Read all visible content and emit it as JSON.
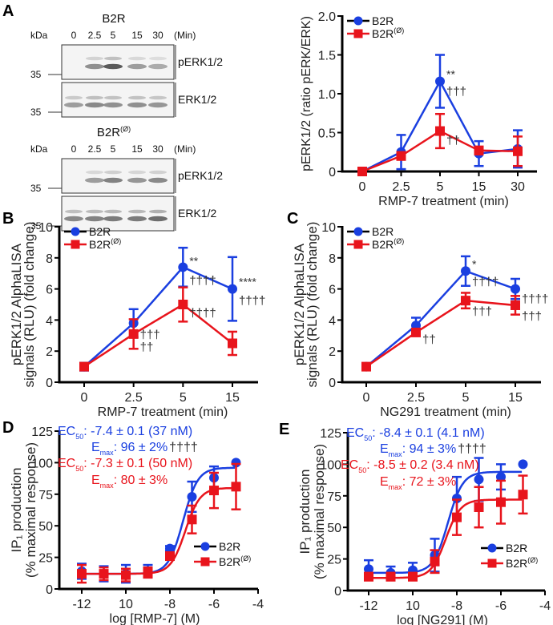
{
  "colors": {
    "b2r": "#1a3fe0",
    "b2r_mut": "#e8141c",
    "axis": "#000000",
    "annot": "#333333"
  },
  "panel_letters": [
    "A",
    "B",
    "C",
    "D",
    "E"
  ],
  "blot": {
    "groups": [
      {
        "title": "B2R",
        "title_sup": "",
        "kda_label": "kDa",
        "lanes": [
          "0",
          "2.5",
          "5",
          "15",
          "30"
        ],
        "unit": "(Min)",
        "rows": [
          {
            "label": "pERK1/2",
            "marker": "35",
            "bands": [
              0.0,
              0.45,
              0.85,
              0.35,
              0.25
            ]
          },
          {
            "label": "ERK1/2",
            "marker": "35",
            "bands": [
              0.35,
              0.5,
              0.45,
              0.45,
              0.4
            ]
          }
        ]
      },
      {
        "title": "B2R",
        "title_sup": "(Ø)",
        "kda_label": "kDa",
        "lanes": [
          "0",
          "2.5",
          "5",
          "15",
          "30"
        ],
        "unit": "(Min)",
        "rows": [
          {
            "label": "pERK1/2",
            "marker": "35",
            "bands": [
              0.0,
              0.35,
              0.55,
              0.4,
              0.5
            ]
          },
          {
            "label": "ERK1/2",
            "marker": "35",
            "bands": [
              0.5,
              0.55,
              0.6,
              0.6,
              0.7
            ]
          }
        ]
      }
    ]
  },
  "chart_data": [
    {
      "id": "A",
      "type": "line",
      "title": "",
      "xlabel": "RMP-7 treatment (min)",
      "ylabel": "pERK1/2 (ratio pERK/ERK)",
      "categories": [
        "0",
        "2.5",
        "5",
        "15",
        "30"
      ],
      "yticks": [
        "0",
        "0.5",
        "1.0",
        "1.5",
        "2.0"
      ],
      "ylim": [
        0,
        2.0
      ],
      "legend": "top-left",
      "series": [
        {
          "name": "B2R",
          "sup": "",
          "marker": "circle",
          "values": [
            0,
            0.25,
            1.16,
            0.23,
            0.29
          ],
          "err": [
            0.02,
            0.22,
            0.34,
            0.16,
            0.24
          ]
        },
        {
          "name": "B2R",
          "sup": "(Ø)",
          "marker": "square",
          "values": [
            0,
            0.2,
            0.52,
            0.27,
            0.26
          ],
          "err": [
            0.02,
            0.05,
            0.22,
            0.05,
            0.19
          ]
        }
      ],
      "annotations": [
        {
          "text": "**",
          "cat": 2,
          "y": 1.2,
          "color": "annot"
        },
        {
          "text": "†††",
          "cat": 2,
          "y": 0.98,
          "color": "annot"
        },
        {
          "text": "††",
          "cat": 2,
          "y": 0.35,
          "color": "annot"
        }
      ]
    },
    {
      "id": "B",
      "type": "line",
      "xlabel": "RMP-7 treatment (min)",
      "ylabel": [
        "pERK1/2 AlphaLISA",
        "signals (RLU) (fold change)"
      ],
      "categories": [
        "0",
        "2.5",
        "5",
        "15"
      ],
      "yticks": [
        "0",
        "2",
        "4",
        "6",
        "8",
        "10"
      ],
      "ylim": [
        0,
        10
      ],
      "legend": "top-left",
      "series": [
        {
          "name": "B2R",
          "sup": "",
          "marker": "circle",
          "values": [
            1.0,
            3.8,
            7.4,
            6.0
          ],
          "err": [
            0.25,
            0.9,
            1.25,
            2.05
          ]
        },
        {
          "name": "B2R",
          "sup": "(Ø)",
          "marker": "square",
          "values": [
            1.0,
            3.1,
            5.0,
            2.5
          ],
          "err": [
            0.2,
            0.95,
            1.1,
            0.75
          ]
        }
      ],
      "annotations": [
        {
          "text": "**",
          "cat": 2,
          "y": 7.55,
          "color": "annot"
        },
        {
          "text": "††††",
          "cat": 2,
          "y": 6.3,
          "color": "annot"
        },
        {
          "text": "††††",
          "cat": 2,
          "y": 4.2,
          "color": "annot"
        },
        {
          "text": "****",
          "cat": 3,
          "y": 6.2,
          "color": "annot"
        },
        {
          "text": "††††",
          "cat": 3,
          "y": 5.0,
          "color": "annot"
        },
        {
          "text": "†††",
          "cat": 1,
          "y": 2.8,
          "color": "annot"
        },
        {
          "text": "††",
          "cat": 1,
          "y": 2.0,
          "color": "annot"
        }
      ]
    },
    {
      "id": "C",
      "type": "line",
      "xlabel": "NG291 treatment (min)",
      "ylabel": [
        "pERK1/2 AlphaLISA",
        "signals (RLU) (fold change)"
      ],
      "categories": [
        "0",
        "2.5",
        "5",
        "15"
      ],
      "yticks": [
        "0",
        "2",
        "4",
        "6",
        "8",
        "10"
      ],
      "ylim": [
        0,
        10
      ],
      "legend": "top-left",
      "series": [
        {
          "name": "B2R",
          "sup": "",
          "marker": "circle",
          "values": [
            1.0,
            3.65,
            7.15,
            6.0
          ],
          "err": [
            0.1,
            0.5,
            0.95,
            0.65
          ]
        },
        {
          "name": "B2R",
          "sup": "(Ø)",
          "marker": "square",
          "values": [
            1.0,
            3.2,
            5.25,
            4.95
          ],
          "err": [
            0.1,
            0.2,
            0.5,
            0.6
          ]
        }
      ],
      "annotations": [
        {
          "text": "*",
          "cat": 2,
          "y": 7.35,
          "color": "annot"
        },
        {
          "text": "††††",
          "cat": 2,
          "y": 6.2,
          "color": "annot"
        },
        {
          "text": "†††",
          "cat": 2,
          "y": 4.3,
          "color": "annot"
        },
        {
          "text": "††††",
          "cat": 3,
          "y": 5.1,
          "color": "annot"
        },
        {
          "text": "†††",
          "cat": 3,
          "y": 4.0,
          "color": "annot"
        },
        {
          "text": "††",
          "cat": 1,
          "y": 2.5,
          "color": "annot"
        }
      ]
    },
    {
      "id": "D",
      "type": "scatter",
      "xlabel": "log [RMP-7] (M)",
      "ylabel": [
        "IP₁ production",
        "(% maximal response)"
      ],
      "xticks": [
        "-12",
        "10",
        "-8",
        "-6",
        "-4"
      ],
      "xlim": [
        -12.5,
        -4
      ],
      "yticks": [
        "0",
        "25",
        "50",
        "75",
        "100",
        "125"
      ],
      "ylim": [
        0,
        125
      ],
      "legend": "bottom-right",
      "series": [
        {
          "name": "B2R",
          "sup": "",
          "marker": "circle",
          "x": [
            -12,
            -11,
            -10,
            -9,
            -8,
            -7,
            -6,
            -5
          ],
          "values": [
            14,
            12,
            12,
            14,
            32,
            73,
            88,
            100
          ],
          "err": [
            6,
            6,
            7,
            5,
            2,
            12,
            9,
            0
          ],
          "fit": {
            "bottom": 12,
            "top": 96,
            "logEC50": -7.4,
            "hill": 1.3
          }
        },
        {
          "name": "B2R",
          "sup": "(Ø)",
          "marker": "square",
          "x": [
            -12,
            -11,
            -10,
            -9,
            -8,
            -7,
            -6,
            -5
          ],
          "values": [
            12,
            12,
            11,
            13,
            26,
            55,
            78,
            81
          ],
          "err": [
            7,
            5,
            5,
            4,
            2,
            11,
            14,
            18
          ],
          "fit": {
            "bottom": 12,
            "top": 80,
            "logEC50": -7.3,
            "hill": 1.3
          }
        }
      ],
      "stats": [
        {
          "label": "EC",
          "sub": "50",
          "text": ": -7.4 ± 0.1 (37 nM)",
          "color": "b2r"
        },
        {
          "label": "E",
          "sub": "max",
          "text": ": 96 ± 2%",
          "extra": "††††",
          "color": "b2r"
        },
        {
          "label": "EC",
          "sub": "50",
          "text": ": -7.3 ± 0.1 (50 nM)",
          "color": "b2r_mut"
        },
        {
          "label": "E",
          "sub": "max",
          "text": ": 80 ± 3%",
          "extra": "",
          "color": "b2r_mut"
        }
      ]
    },
    {
      "id": "E",
      "type": "scatter",
      "xlabel": "log [NG291] (M)",
      "ylabel": [
        "IP₁ production",
        "(% maximal response)"
      ],
      "xticks": [
        "-12",
        "10",
        "-8",
        "-6",
        "-4"
      ],
      "xlim": [
        -12.5,
        -4
      ],
      "yticks": [
        "0",
        "25",
        "50",
        "75",
        "100",
        "125"
      ],
      "ylim": [
        0,
        125
      ],
      "legend": "bottom-right",
      "series": [
        {
          "name": "B2R",
          "sup": "",
          "marker": "circle",
          "x": [
            -12,
            -11,
            -10,
            -9,
            -8,
            -7,
            -6,
            -5
          ],
          "values": [
            17,
            14,
            16,
            28,
            73,
            88,
            90,
            100
          ],
          "err": [
            7,
            5,
            6,
            13,
            17,
            17,
            10,
            0
          ],
          "fit": {
            "bottom": 14,
            "top": 94,
            "logEC50": -8.4,
            "hill": 1.3
          }
        },
        {
          "name": "B2R",
          "sup": "(Ø)",
          "marker": "square",
          "x": [
            -12,
            -11,
            -10,
            -9,
            -8,
            -7,
            -6,
            -5
          ],
          "values": [
            11,
            11,
            11,
            23,
            58,
            66,
            70,
            76
          ],
          "err": [
            3,
            3,
            3,
            9,
            14,
            16,
            17,
            15
          ],
          "fit": {
            "bottom": 10,
            "top": 72,
            "logEC50": -8.5,
            "hill": 1.3
          }
        }
      ],
      "stats": [
        {
          "label": "EC",
          "sub": "50",
          "text": ": -8.4 ± 0.1 (4.1 nM)",
          "color": "b2r"
        },
        {
          "label": "E",
          "sub": "max",
          "text": ": 94 ± 3%",
          "extra": "††††",
          "color": "b2r"
        },
        {
          "label": "EC",
          "sub": "50",
          "text": ": -8.5 ± 0.2 (3.4 nM)",
          "color": "b2r_mut"
        },
        {
          "label": "E",
          "sub": "max",
          "text": ": 72 ± 3%",
          "extra": "",
          "color": "b2r_mut"
        }
      ]
    }
  ]
}
